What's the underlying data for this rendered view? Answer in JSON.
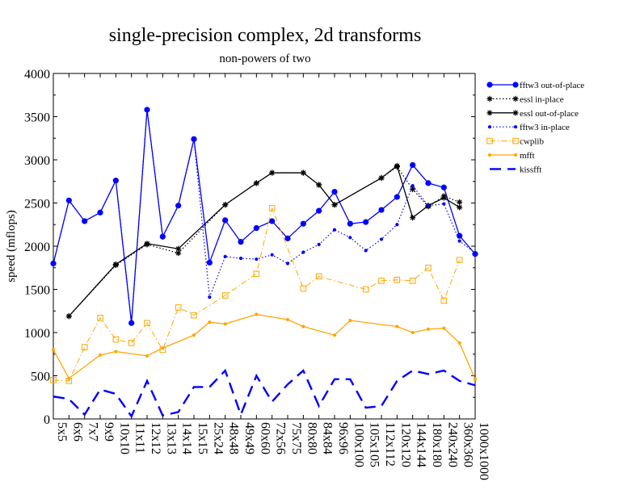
{
  "chart_data": {
    "type": "line",
    "title": "single-precision complex, 2d transforms",
    "subtitle": "non-powers of two",
    "xlabel": "",
    "ylabel": "speed (mflops)",
    "ylim": [
      0,
      4000
    ],
    "yticks": [
      "0",
      "500",
      "1000",
      "1500",
      "2000",
      "2500",
      "3000",
      "3500",
      "4000"
    ],
    "categories": [
      "5x5",
      "6x6",
      "7x7",
      "9x9",
      "10x10",
      "11x11",
      "12x12",
      "13x13",
      "14x14",
      "15x15",
      "25x24",
      "48x48",
      "49x49",
      "60x60",
      "72x56",
      "75x75",
      "80x80",
      "84x84",
      "96x96",
      "100x100",
      "105x105",
      "112x112",
      "120x120",
      "144x144",
      "180x180",
      "240x240",
      "360x360",
      "1000x1000"
    ],
    "grid": false,
    "legend_position": "right",
    "series": [
      {
        "name": "fftw3 out-of-place",
        "color": "#0000ff",
        "style": "solid",
        "marker": "circle",
        "values": [
          1800,
          2530,
          2290,
          2390,
          2760,
          1110,
          3580,
          2110,
          2470,
          3240,
          1810,
          2300,
          2050,
          2210,
          2290,
          2090,
          2260,
          2410,
          2630,
          2260,
          2280,
          2420,
          2570,
          2940,
          2730,
          2680,
          2120,
          1910
        ]
      },
      {
        "name": "essl in-place",
        "color": "#000000",
        "style": "dotted",
        "marker": "star",
        "values": [
          null,
          1190,
          null,
          null,
          1780,
          null,
          2020,
          null,
          1920,
          null,
          null,
          2480,
          null,
          2730,
          2850,
          null,
          2850,
          2710,
          2480,
          null,
          null,
          2790,
          2920,
          2660,
          2460,
          2580,
          2510,
          null
        ]
      },
      {
        "name": "essl out-of-place",
        "color": "#000000",
        "style": "solid",
        "marker": "star",
        "values": [
          null,
          1190,
          null,
          null,
          1790,
          null,
          2030,
          null,
          1970,
          null,
          null,
          2480,
          null,
          2730,
          2850,
          null,
          2850,
          2710,
          2480,
          null,
          null,
          2790,
          2930,
          2330,
          2470,
          2560,
          2450,
          null
        ]
      },
      {
        "name": "fftw3 in-place",
        "color": "#0000ff",
        "style": "dotted",
        "marker": "dot",
        "values": [
          1800,
          2530,
          2290,
          2390,
          2760,
          1110,
          3580,
          2110,
          2470,
          3240,
          1410,
          1880,
          1860,
          1850,
          1900,
          1800,
          1930,
          2020,
          2190,
          2100,
          1950,
          2080,
          2250,
          2700,
          2470,
          2490,
          2060,
          1920
        ]
      },
      {
        "name": "cwplib",
        "color": "#ffa500",
        "style": "dashdot",
        "marker": "square",
        "values": [
          450,
          440,
          830,
          1170,
          920,
          880,
          1110,
          800,
          1290,
          1200,
          null,
          1430,
          null,
          1680,
          2440,
          null,
          1510,
          1650,
          null,
          null,
          1500,
          1600,
          1610,
          1600,
          1750,
          1370,
          1840,
          null
        ]
      },
      {
        "name": "mfft",
        "color": "#ffa500",
        "style": "solid",
        "marker": "dot",
        "values": [
          800,
          470,
          null,
          740,
          780,
          null,
          730,
          820,
          null,
          970,
          1120,
          1100,
          null,
          1210,
          null,
          1150,
          1070,
          null,
          970,
          1140,
          null,
          null,
          1070,
          1000,
          1040,
          1050,
          880,
          460
        ]
      },
      {
        "name": "kissfft",
        "color": "#0000ff",
        "style": "dashed",
        "marker": "none",
        "values": [
          260,
          230,
          50,
          340,
          290,
          30,
          440,
          40,
          80,
          370,
          370,
          560,
          50,
          500,
          200,
          400,
          560,
          150,
          460,
          460,
          130,
          150,
          440,
          560,
          520,
          560,
          440,
          390
        ]
      }
    ]
  }
}
